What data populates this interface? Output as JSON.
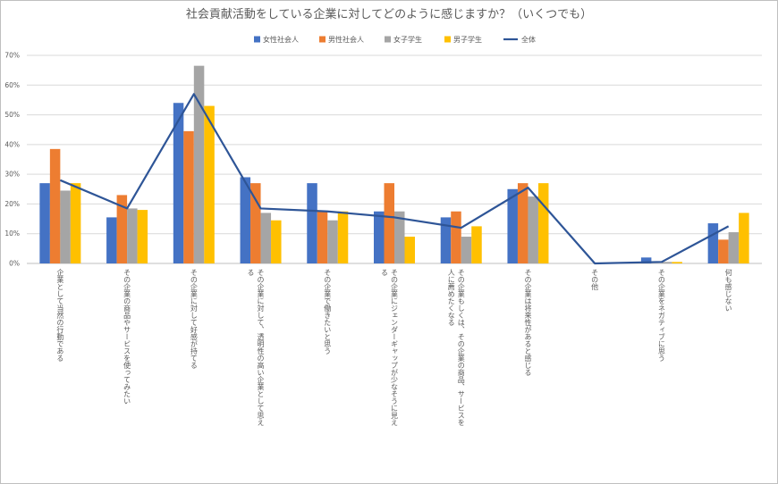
{
  "chart_data": {
    "type": "bar",
    "title": "社会貢献活動をしている企業に対してどのように感じますか？（いくつでも）",
    "ylim": [
      0,
      70
    ],
    "yticks": [
      "0%",
      "10%",
      "20%",
      "30%",
      "40%",
      "50%",
      "60%",
      "70%"
    ],
    "grid": true,
    "legend_position": "top",
    "categories": [
      "企業として当然の行動である",
      "その企業の商品やサービスを使ってみたい",
      "その企業に対して好感が持てる",
      "その企業に対して、透明性の高い企業として思える",
      "その企業で働きたいと思う",
      "その企業にジェンダーギャップが少なそうに見える",
      "その企業もしくは、その企業の商品、サービスを人に薦めたくなる",
      "その企業は将来性があると感じる",
      "その他",
      "その企業をネガティブに思う",
      "何も感じない"
    ],
    "series": [
      {
        "name": "女性社会人",
        "type": "bar",
        "color": "#4472c4",
        "values": [
          27,
          15.5,
          54,
          29,
          27,
          17.5,
          15.5,
          25,
          0,
          2,
          13.5
        ]
      },
      {
        "name": "男性社会人",
        "type": "bar",
        "color": "#ed7d31",
        "values": [
          38.5,
          23,
          44.5,
          27,
          17.5,
          27,
          17.5,
          27,
          0,
          0,
          8
        ]
      },
      {
        "name": "女子学生",
        "type": "bar",
        "color": "#a5a5a5",
        "values": [
          24.5,
          18.5,
          66.5,
          17,
          14.5,
          17.5,
          9,
          22.5,
          0,
          0.5,
          10.5
        ]
      },
      {
        "name": "男子学生",
        "type": "bar",
        "color": "#ffc000",
        "values": [
          27,
          18,
          53,
          14.5,
          17.5,
          9,
          12.5,
          27,
          0,
          0.5,
          17
        ]
      },
      {
        "name": "全体",
        "type": "line",
        "color": "#2e5597",
        "values": [
          28,
          18.5,
          57,
          18.5,
          17.5,
          15.5,
          12,
          25.5,
          0,
          0.5,
          12.5
        ]
      }
    ]
  }
}
